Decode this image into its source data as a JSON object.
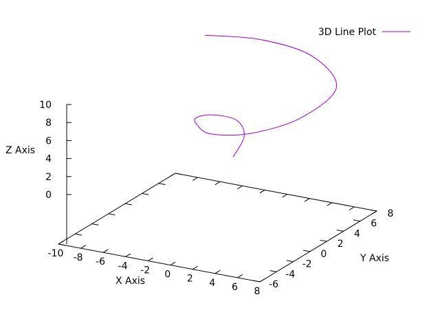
{
  "chart_data": {
    "type": "line",
    "title": "",
    "legend": {
      "entries": [
        "3D Line Plot"
      ],
      "placement": "top-right"
    },
    "series": [
      {
        "name": "3D Line Plot",
        "color": "#9400d3",
        "description_of_shape": "ascending spiral",
        "points": [
          {
            "x": -1.4,
            "y": 3.4,
            "z": 0.9
          },
          {
            "x": -1.3,
            "y": 4.6,
            "z": 2.6
          },
          {
            "x": -2.9,
            "y": 5.8,
            "z": 3.3
          },
          {
            "x": -4.8,
            "y": 5.5,
            "z": 3.6
          },
          {
            "x": -5.6,
            "y": 4.6,
            "z": 3.6
          },
          {
            "x": -4.5,
            "y": 3.2,
            "z": 3.9
          },
          {
            "x": -2.0,
            "y": 1.5,
            "z": 4.4
          },
          {
            "x": 1.5,
            "y": 1.6,
            "z": 5.2
          },
          {
            "x": 4.6,
            "y": 3.5,
            "z": 6.6
          },
          {
            "x": 5.0,
            "y": 7.2,
            "z": 8.0
          },
          {
            "x": 1.0,
            "y": 9.6,
            "z": 9.2
          },
          {
            "x": -3.7,
            "y": 9.8,
            "z": 9.8
          },
          {
            "x": -7.5,
            "y": 8.2,
            "z": 10.3
          }
        ]
      }
    ],
    "axes": {
      "x": {
        "label": "X Axis",
        "ticks": [
          "-10",
          "-8",
          "-6",
          "-4",
          "-2",
          "0",
          "2",
          "4",
          "6",
          "8"
        ],
        "range": [
          -10,
          8
        ]
      },
      "y": {
        "label": "Y Axis",
        "ticks": [
          "-6",
          "-4",
          "-2",
          "0",
          "2",
          "4",
          "6",
          "8"
        ],
        "range": [
          -6,
          8
        ]
      },
      "z": {
        "label": "Z Axis",
        "ticks": [
          "0",
          "2",
          "4",
          "6",
          "8",
          "10"
        ],
        "range": [
          0,
          10
        ]
      }
    },
    "grid": false
  }
}
